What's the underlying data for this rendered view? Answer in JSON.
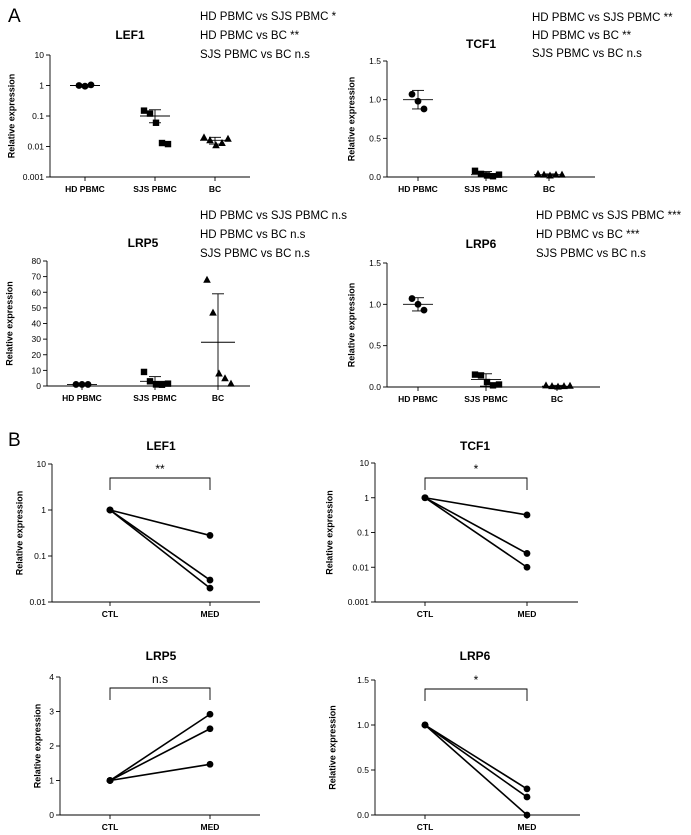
{
  "panel_labels": {
    "a": "A",
    "b": "B"
  },
  "chart_data": [
    {
      "type": "scatter",
      "title": "LEF1",
      "scale": "log",
      "ylabel": "Relative expression",
      "ylim": [
        0.001,
        10
      ],
      "yticks": [
        "0.001",
        "0.01",
        "0.1",
        "1",
        "10"
      ],
      "categories": [
        "HD PBMC",
        "SJS PBMC",
        "BC"
      ],
      "markers": [
        "circle",
        "square",
        "triangle"
      ],
      "points": [
        [
          1.0,
          0.95,
          1.05
        ],
        [
          0.15,
          0.12,
          0.06,
          0.013,
          0.012
        ],
        [
          0.02,
          0.016,
          0.011,
          0.013,
          0.018
        ]
      ],
      "mean": [
        1.0,
        0.1,
        0.016
      ],
      "err_low": [
        0.88,
        0.06,
        0.012
      ],
      "err_high": [
        1.08,
        0.16,
        0.02
      ],
      "annotations": [
        {
          "pre": "HD PBMC vs SJS PBMC ",
          "sig": "*"
        },
        {
          "pre": "HD PBMC vs BC ",
          "sig": "**"
        },
        {
          "pre": "SJS PBMC vs BC n.s",
          "sig": ""
        }
      ]
    },
    {
      "type": "scatter",
      "title": "TCF1",
      "scale": "linear",
      "ylabel": "Relative expression",
      "ylim": [
        0,
        1.5
      ],
      "yticks": [
        "0.0",
        "0.5",
        "1.0",
        "1.5"
      ],
      "categories": [
        "HD PBMC",
        "SJS PBMC",
        "BC"
      ],
      "markers": [
        "circle",
        "square",
        "triangle"
      ],
      "points": [
        [
          1.07,
          0.98,
          0.88
        ],
        [
          0.08,
          0.04,
          0.02,
          0.01,
          0.03
        ],
        [
          0.04,
          0.03,
          0.02,
          0.03,
          0.03
        ]
      ],
      "mean": [
        1.0,
        0.03,
        0.03
      ],
      "err_low": [
        0.88,
        0.0,
        0.02
      ],
      "err_high": [
        1.12,
        0.07,
        0.04
      ],
      "annotations": [
        {
          "pre": "HD PBMC vs SJS PBMC ",
          "sig": "**"
        },
        {
          "pre": "HD PBMC vs BC ",
          "sig": "**"
        },
        {
          "pre": "SJS PBMC vs BC n.s",
          "sig": ""
        }
      ]
    },
    {
      "type": "scatter",
      "title": "LRP5",
      "scale": "linear",
      "ylabel": "Relative expression",
      "ylim": [
        0,
        80
      ],
      "yticks": [
        "0",
        "10",
        "20",
        "30",
        "40",
        "50",
        "60",
        "70",
        "80"
      ],
      "categories": [
        "HD PBMC",
        "SJS PBMC",
        "BC"
      ],
      "markers": [
        "circle",
        "square",
        "triangle"
      ],
      "points": [
        [
          1.0,
          1.0,
          1.0
        ],
        [
          9.0,
          3.0,
          1.0,
          0.8,
          1.5
        ],
        [
          68,
          47,
          8,
          5,
          1.5
        ]
      ],
      "mean": [
        1.0,
        3.0,
        28.0
      ],
      "err_low": [
        0.8,
        0.0,
        0.0
      ],
      "err_high": [
        1.2,
        6.0,
        59.0
      ],
      "annotations": [
        {
          "pre": "HD PBMC vs SJS PBMC n.s",
          "sig": ""
        },
        {
          "pre": "HD PBMC vs BC n.s",
          "sig": ""
        },
        {
          "pre": "SJS PBMC vs BC n.s",
          "sig": ""
        }
      ]
    },
    {
      "type": "scatter",
      "title": "LRP6",
      "scale": "linear",
      "ylabel": "Relative expression",
      "ylim": [
        0,
        1.5
      ],
      "yticks": [
        "0.0",
        "0.5",
        "1.0",
        "1.5"
      ],
      "categories": [
        "HD PBMC",
        "SJS PBMC",
        "BC"
      ],
      "markers": [
        "circle",
        "square",
        "triangle"
      ],
      "points": [
        [
          1.07,
          1.0,
          0.93
        ],
        [
          0.15,
          0.14,
          0.06,
          0.02,
          0.03
        ],
        [
          0.02,
          0.01,
          0.005,
          0.01,
          0.015
        ]
      ],
      "mean": [
        1.0,
        0.09,
        0.01
      ],
      "err_low": [
        0.92,
        0.01,
        0.0
      ],
      "err_high": [
        1.08,
        0.16,
        0.02
      ],
      "annotations": [
        {
          "pre": "HD PBMC vs SJS PBMC ",
          "sig": "***"
        },
        {
          "pre": "HD PBMC vs BC ",
          "sig": "***"
        },
        {
          "pre": "SJS PBMC vs BC n.s",
          "sig": ""
        }
      ]
    },
    {
      "type": "line",
      "title": "LEF1",
      "scale": "log",
      "ylabel": "Relative expression",
      "ylim": [
        0.01,
        10
      ],
      "yticks": [
        "0.01",
        "0.1",
        "1",
        "10"
      ],
      "categories": [
        "CTL",
        "MED"
      ],
      "series": [
        [
          1,
          0.28
        ],
        [
          1,
          0.03
        ],
        [
          1,
          0.02
        ]
      ],
      "significance": "**"
    },
    {
      "type": "line",
      "title": "TCF1",
      "scale": "log",
      "ylabel": "Relative expression",
      "ylim": [
        0.001,
        10
      ],
      "yticks": [
        "0.001",
        "0.01",
        "0.1",
        "1",
        "10"
      ],
      "categories": [
        "CTL",
        "MED"
      ],
      "series": [
        [
          1,
          0.32
        ],
        [
          1,
          0.025
        ],
        [
          1,
          0.01
        ]
      ],
      "significance": "*"
    },
    {
      "type": "line",
      "title": "LRP5",
      "scale": "linear",
      "ylabel": "Relative expression",
      "ylim": [
        0,
        4
      ],
      "yticks": [
        "0",
        "1",
        "2",
        "3",
        "4"
      ],
      "categories": [
        "CTL",
        "MED"
      ],
      "series": [
        [
          1,
          2.92
        ],
        [
          1,
          2.5
        ],
        [
          1,
          1.47
        ]
      ],
      "significance": "n.s"
    },
    {
      "type": "line",
      "title": "LRP6",
      "scale": "linear",
      "ylabel": "Relative expression",
      "ylim": [
        0,
        1.5
      ],
      "yticks": [
        "0.0",
        "0.5",
        "1.0",
        "1.5"
      ],
      "categories": [
        "CTL",
        "MED"
      ],
      "series": [
        [
          1,
          0.29
        ],
        [
          1,
          0.2
        ],
        [
          1,
          0.0
        ]
      ],
      "significance": "*"
    }
  ]
}
